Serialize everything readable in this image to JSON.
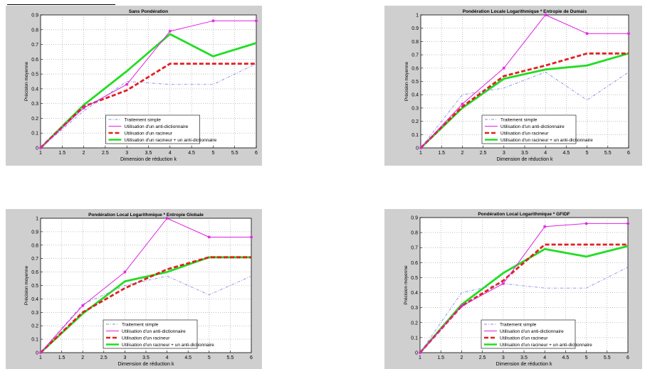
{
  "chart_data": [
    {
      "type": "line",
      "title": "Sans Pondération",
      "xlabel": "Dimension de réduction k",
      "ylabel": "Précision moyenne",
      "xlim": [
        1,
        6
      ],
      "ylim": [
        0,
        0.9
      ],
      "xticks": [
        1,
        1.5,
        2,
        2.5,
        3,
        3.5,
        4,
        4.5,
        5,
        5.5,
        6
      ],
      "xtick_labels": [
        "1",
        "1.5",
        "2",
        "2.5",
        "3",
        "3.5",
        "4",
        "4.5",
        "5",
        "5.5",
        "6"
      ],
      "yticks": [
        0,
        0.1,
        0.2,
        0.3,
        0.4,
        0.5,
        0.6,
        0.7,
        0.8,
        0.9
      ],
      "ytick_labels": [
        "0",
        "0.1",
        "0.2",
        "0.3",
        "0.4",
        "0.5",
        "0.6",
        "0.7",
        "0.8",
        "0.9"
      ],
      "grid": true,
      "legend_position": "lower-center",
      "x": [
        1,
        2,
        3,
        4,
        5,
        6
      ],
      "series": [
        {
          "name": "Traitement simple",
          "values": [
            0,
            0.25,
            0.45,
            0.43,
            0.43,
            0.57
          ],
          "color": "#8a8ae6",
          "style": "dashdot"
        },
        {
          "name": "Utilisation d'un anti-dictionnaire",
          "values": [
            0,
            0.27,
            0.43,
            0.79,
            0.86,
            0.86
          ],
          "color": "#e020e0",
          "style": "solid-star"
        },
        {
          "name": "Utilisation d'un racineur",
          "values": [
            0,
            0.28,
            0.39,
            0.57,
            0.57,
            0.57
          ],
          "color": "#e02020",
          "style": "dashed-thick"
        },
        {
          "name": "Utilisation d'un racineur + un anti-dictionnaire",
          "values": [
            0,
            0.29,
            0.52,
            0.77,
            0.62,
            0.71
          ],
          "color": "#22dd22",
          "style": "solid-thick"
        }
      ]
    },
    {
      "type": "line",
      "title": "Pondération Locale Logarithmique * Entropie de Dumais",
      "xlabel": "Dimension de réduction k",
      "ylabel": "Précision moyenne",
      "xlim": [
        1,
        6
      ],
      "ylim": [
        0,
        1
      ],
      "xticks": [
        1,
        1.5,
        2,
        2.5,
        3,
        3.5,
        4,
        4.5,
        5,
        5.5,
        6
      ],
      "xtick_labels": [
        "1",
        "1.5",
        "2",
        "2.5",
        "3",
        "3.5",
        "4",
        "4.5",
        "5",
        "5.5",
        "6"
      ],
      "yticks": [
        0,
        0.1,
        0.2,
        0.3,
        0.4,
        0.5,
        0.6,
        0.7,
        0.8,
        0.9,
        1
      ],
      "ytick_labels": [
        "0",
        "0.1",
        "0.2",
        "0.3",
        "0.4",
        "0.5",
        "0.6",
        "0.7",
        "0.8",
        "0.9",
        "1"
      ],
      "grid": true,
      "legend_position": "lower-center",
      "x": [
        1,
        2,
        3,
        4,
        5,
        6
      ],
      "series": [
        {
          "name": "Traitement simple",
          "values": [
            0,
            0.4,
            0.45,
            0.57,
            0.36,
            0.57
          ],
          "color": "#8a8ae6",
          "style": "dashdot"
        },
        {
          "name": "Utilisation d'un anti-dictionnaire",
          "values": [
            0,
            0.33,
            0.6,
            1.0,
            0.86,
            0.86
          ],
          "color": "#e020e0",
          "style": "solid-star"
        },
        {
          "name": "Utilisation d'un racineur",
          "values": [
            0,
            0.31,
            0.54,
            0.62,
            0.71,
            0.71
          ],
          "color": "#e02020",
          "style": "dashed-thick"
        },
        {
          "name": "Utilisation d'un racineur + un anti-dictionnaire",
          "values": [
            0,
            0.3,
            0.52,
            0.59,
            0.62,
            0.71
          ],
          "color": "#22dd22",
          "style": "solid-thick"
        }
      ]
    },
    {
      "type": "line",
      "title": "Pondération Local Logarithmique * Entropie Globale",
      "xlabel": "Dimension de réduction k",
      "ylabel": "Précision moyenne",
      "xlim": [
        1,
        6
      ],
      "ylim": [
        0,
        1
      ],
      "xticks": [
        1,
        1.5,
        2,
        2.5,
        3,
        3.5,
        4,
        4.5,
        5,
        5.5,
        6
      ],
      "xtick_labels": [
        "1",
        "1.5",
        "2",
        "2.5",
        "3",
        "3.5",
        "4",
        "4.5",
        "5",
        "5.5",
        "6"
      ],
      "yticks": [
        0,
        0.1,
        0.2,
        0.3,
        0.4,
        0.5,
        0.6,
        0.7,
        0.8,
        0.9,
        1
      ],
      "ytick_labels": [
        "0",
        "0.1",
        "0.2",
        "0.3",
        "0.4",
        "0.5",
        "0.6",
        "0.7",
        "0.8",
        "0.9",
        "1"
      ],
      "grid": true,
      "legend_position": "lower-center",
      "x": [
        1,
        2,
        3,
        4,
        5,
        6
      ],
      "series": [
        {
          "name": "Traitement simple",
          "values": [
            0,
            0.36,
            0.5,
            0.57,
            0.43,
            0.57
          ],
          "color": "#8a8ae6",
          "style": "dashdot"
        },
        {
          "name": "Utilisation d'un anti-dictionnaire",
          "values": [
            0,
            0.35,
            0.6,
            1.0,
            0.86,
            0.86
          ],
          "color": "#e020e0",
          "style": "solid-star"
        },
        {
          "name": "Utilisation d'un racineur",
          "values": [
            0,
            0.3,
            0.48,
            0.62,
            0.71,
            0.71
          ],
          "color": "#e02020",
          "style": "dashed-thick"
        },
        {
          "name": "Utilisation d'un racineur + un anti-dictionnaire",
          "values": [
            0,
            0.29,
            0.53,
            0.6,
            0.71,
            0.71
          ],
          "color": "#22dd22",
          "style": "solid-thick"
        }
      ]
    },
    {
      "type": "line",
      "title": "Pondération Local Logarithmique * GFIDF",
      "xlabel": "Dimension de réduction k",
      "ylabel": "Précision moyenne",
      "xlim": [
        1,
        6
      ],
      "ylim": [
        0,
        0.9
      ],
      "xticks": [
        1,
        1.5,
        2,
        2.5,
        3,
        3.5,
        4,
        4.5,
        5,
        5.5,
        6
      ],
      "xtick_labels": [
        "1",
        "1.5",
        "2",
        "2.5",
        "3",
        "3.5",
        "4",
        "4.5",
        "5",
        "5.5",
        "6"
      ],
      "yticks": [
        0,
        0.1,
        0.2,
        0.3,
        0.4,
        0.5,
        0.6,
        0.7,
        0.8,
        0.9
      ],
      "ytick_labels": [
        "0",
        "0.1",
        "0.2",
        "0.3",
        "0.4",
        "0.5",
        "0.6",
        "0.7",
        "0.8",
        "0.9"
      ],
      "grid": true,
      "legend_position": "lower-center",
      "x": [
        1,
        2,
        3,
        4,
        5,
        6
      ],
      "series": [
        {
          "name": "Traitement simple",
          "values": [
            0,
            0.4,
            0.46,
            0.43,
            0.43,
            0.57
          ],
          "color": "#8a8ae6",
          "style": "dashdot"
        },
        {
          "name": "Utilisation d'un anti-dictionnaire",
          "values": [
            0,
            0.31,
            0.46,
            0.84,
            0.86,
            0.86
          ],
          "color": "#e020e0",
          "style": "solid-star"
        },
        {
          "name": "Utilisation d'un racineur",
          "values": [
            0,
            0.31,
            0.48,
            0.72,
            0.72,
            0.72
          ],
          "color": "#e02020",
          "style": "dashed-thick"
        },
        {
          "name": "Utilisation d'un racineur + un anti-dictionnaire",
          "values": [
            0,
            0.32,
            0.53,
            0.69,
            0.64,
            0.71
          ],
          "color": "#22dd22",
          "style": "solid-thick"
        }
      ]
    }
  ]
}
